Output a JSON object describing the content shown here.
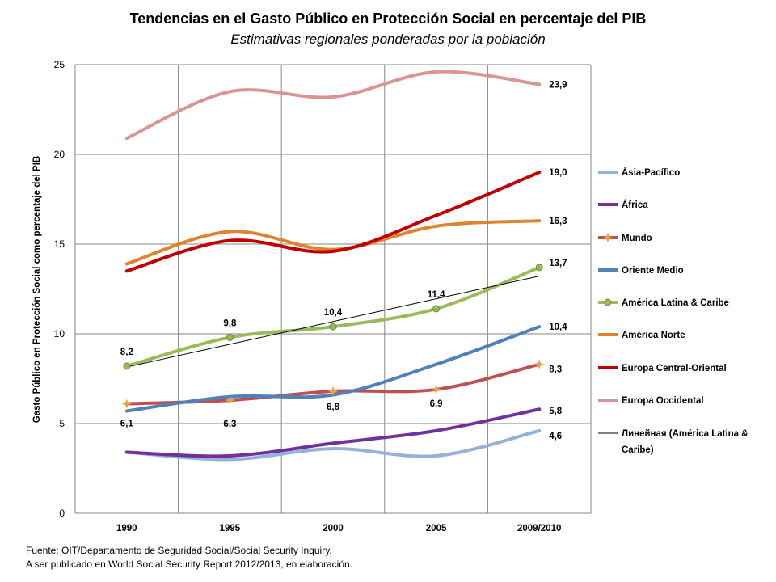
{
  "chart_data": {
    "type": "line",
    "title": "Tendencias en el Gasto Público en Protección Social en percentaje del PIB",
    "subtitle": "Estimativas regionales ponderadas por la población",
    "ylabel": "Gasto Público en Protección Social como percentaje del PIB",
    "xlabel": "",
    "categories": [
      "1990",
      "1995",
      "2000",
      "2005",
      "2009/2010"
    ],
    "ylim": [
      0,
      25
    ],
    "yticks": [
      "0",
      "5",
      "10",
      "15",
      "20",
      "25"
    ],
    "grid": "vertical and horizontal",
    "legend_position": "right",
    "series": [
      {
        "name": "Ásia-Pacífico",
        "color": "#95b3d7",
        "values": [
          3.4,
          3.0,
          3.6,
          3.2,
          4.6
        ],
        "marker": "none",
        "end_label": "4,6"
      },
      {
        "name": "África",
        "color": "#7030a0",
        "values": [
          3.4,
          3.2,
          3.9,
          4.6,
          5.8
        ],
        "marker": "none",
        "end_label": "5,8"
      },
      {
        "name": "Mundo",
        "color": "#c0504d",
        "values": [
          6.1,
          6.3,
          6.8,
          6.9,
          8.3
        ],
        "marker": "star",
        "marker_color": "#e8a33c",
        "point_labels": [
          "6,1",
          "6,3",
          "6,8",
          "6,9",
          "8,3"
        ]
      },
      {
        "name": "Oriente Medio",
        "color": "#4f81bd",
        "values": [
          5.7,
          6.5,
          6.6,
          8.3,
          10.4
        ],
        "marker": "none",
        "end_label": "10,4"
      },
      {
        "name": "América Latina & Caribe",
        "color": "#9bbb59",
        "values": [
          8.2,
          9.8,
          10.4,
          11.4,
          13.7
        ],
        "marker": "circle",
        "point_labels": [
          "8,2",
          "9,8",
          "10,4",
          "11,4",
          "13,7"
        ]
      },
      {
        "name": "América Norte",
        "color": "#e0832f",
        "values": [
          13.9,
          15.7,
          14.7,
          16.0,
          16.3
        ],
        "marker": "none",
        "end_label": "16,3"
      },
      {
        "name": "Europa Central-Oriental",
        "color": "#c00000",
        "values": [
          13.5,
          15.2,
          14.6,
          16.6,
          19.0
        ],
        "marker": "none",
        "end_label": "19,0"
      },
      {
        "name": "Europa Occidental",
        "color": "#d99594",
        "values": [
          20.9,
          23.5,
          23.2,
          24.6,
          23.9
        ],
        "marker": "none",
        "end_label": "23,9"
      }
    ],
    "trendline": {
      "name": "Линейная (América Latina & Caribe)",
      "color": "#000000",
      "start": 8.15,
      "end": 13.2
    }
  },
  "footer": {
    "line1": "Fuente: OIT/Departamento de Seguridad Social/Social Security Inquiry.",
    "line2": "A ser publicado en World Social Security Report 2012/2013,   en elaboración."
  }
}
